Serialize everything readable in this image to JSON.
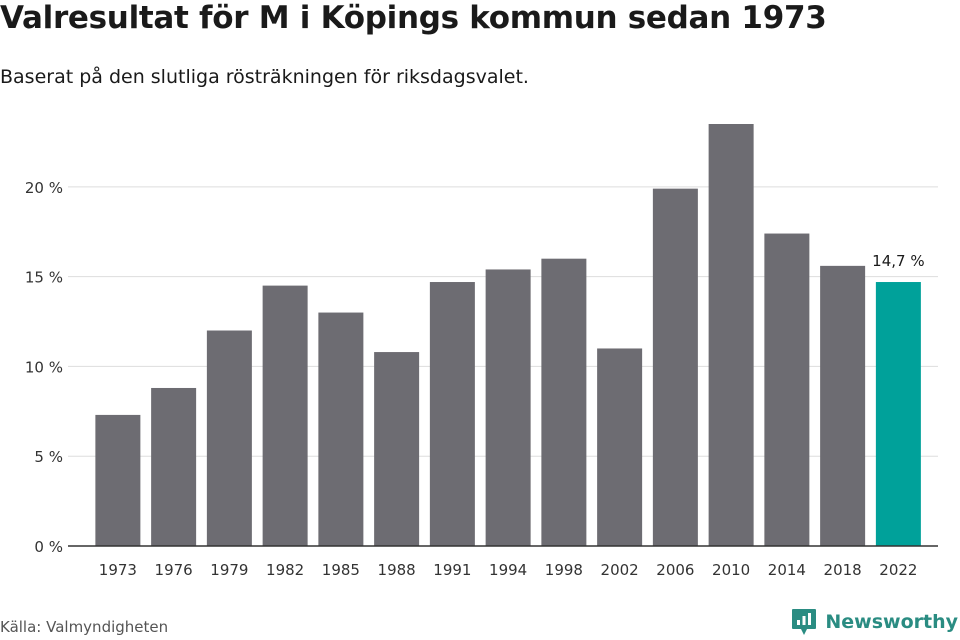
{
  "header": {
    "title": "Valresultat för M i Köpings kommun sedan 1973",
    "subtitle": "Baserat på den slutliga rösträkningen för riksdagsvalet."
  },
  "footer": {
    "source": "Källa: Valmyndigheten",
    "brand": "Newsworthy"
  },
  "colors": {
    "bar": "#6d6c72",
    "highlight": "#00a19a",
    "brand": "#2a8c82",
    "grid": "#dddddd",
    "axis": "#333333"
  },
  "chart_data": {
    "type": "bar",
    "categories": [
      "1973",
      "1976",
      "1979",
      "1982",
      "1985",
      "1988",
      "1991",
      "1994",
      "1998",
      "2002",
      "2006",
      "2010",
      "2014",
      "2018",
      "2022"
    ],
    "values": [
      7.3,
      8.8,
      12.0,
      14.5,
      13.0,
      10.8,
      14.7,
      15.4,
      16.0,
      11.0,
      19.9,
      23.5,
      17.4,
      15.6,
      14.7
    ],
    "ylim": [
      0,
      23.5
    ],
    "yticks": [
      0,
      5,
      10,
      15,
      20
    ],
    "ytick_labels": [
      "0 %",
      "5 %",
      "10 %",
      "15 %",
      "20 %"
    ],
    "highlight_index": 14,
    "data_label": "14,7 %",
    "grid": true
  }
}
